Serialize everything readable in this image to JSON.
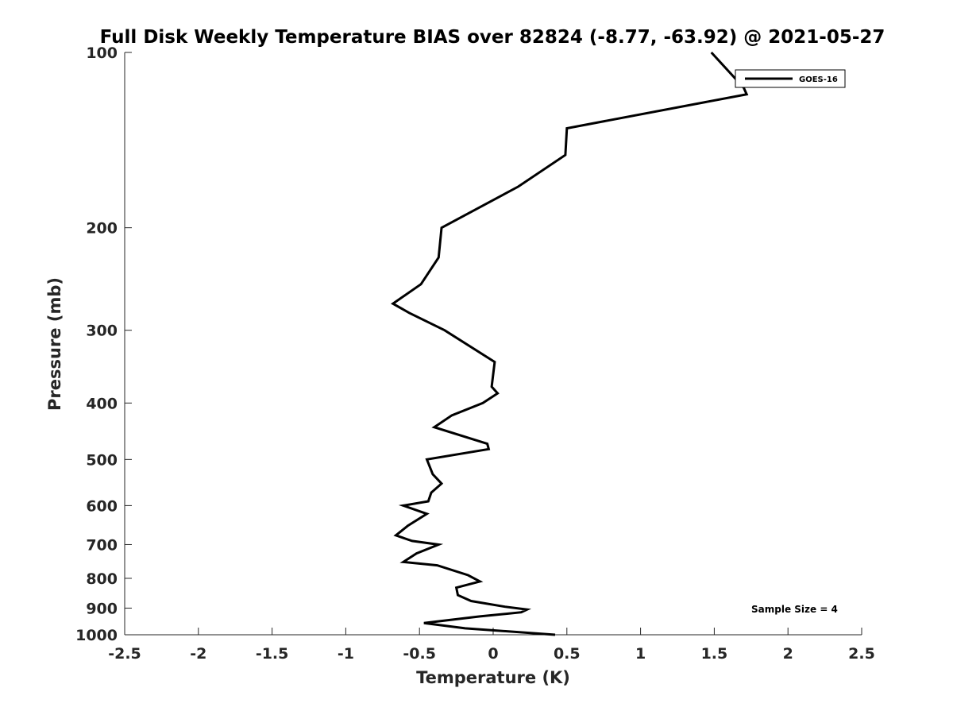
{
  "chart_data": {
    "type": "line",
    "title": "Full Disk Weekly Temperature BIAS over 82824 (-8.77, -63.92) @ 2021-05-27",
    "xlabel": "Temperature (K)",
    "ylabel": "Pressure (mb)",
    "xlim": [
      -2.5,
      2.5
    ],
    "ylim": [
      1000,
      100
    ],
    "y_scale": "log",
    "x_ticks": [
      -2.5,
      -2,
      -1.5,
      -1,
      -0.5,
      0,
      0.5,
      1,
      1.5,
      2,
      2.5
    ],
    "x_tick_labels": [
      "-2.5",
      "-2",
      "-1.5",
      "-1",
      "-0.5",
      "0",
      "0.5",
      "1",
      "1.5",
      "2",
      "2.5"
    ],
    "y_ticks": [
      100,
      200,
      300,
      400,
      500,
      600,
      700,
      800,
      900,
      1000
    ],
    "y_tick_labels": [
      "100",
      "200",
      "300",
      "400",
      "500",
      "600",
      "700",
      "800",
      "900",
      "1000"
    ],
    "grid": false,
    "legend_position": "top-right",
    "annotation": "Sample Size = 4",
    "series": [
      {
        "name": "GOES-16",
        "color": "#000000",
        "points": [
          {
            "x": 1.48,
            "p": 100
          },
          {
            "x": 1.7,
            "p": 115
          },
          {
            "x": 1.72,
            "p": 118
          },
          {
            "x": 0.5,
            "p": 135
          },
          {
            "x": 0.49,
            "p": 150
          },
          {
            "x": 0.17,
            "p": 170
          },
          {
            "x": -0.35,
            "p": 200
          },
          {
            "x": -0.37,
            "p": 225
          },
          {
            "x": -0.49,
            "p": 250
          },
          {
            "x": -0.68,
            "p": 270
          },
          {
            "x": -0.57,
            "p": 280
          },
          {
            "x": -0.33,
            "p": 300
          },
          {
            "x": 0.01,
            "p": 340
          },
          {
            "x": -0.01,
            "p": 375
          },
          {
            "x": 0.03,
            "p": 385
          },
          {
            "x": -0.07,
            "p": 400
          },
          {
            "x": -0.28,
            "p": 420
          },
          {
            "x": -0.4,
            "p": 440
          },
          {
            "x": -0.04,
            "p": 470
          },
          {
            "x": -0.03,
            "p": 480
          },
          {
            "x": -0.45,
            "p": 500
          },
          {
            "x": -0.41,
            "p": 530
          },
          {
            "x": -0.35,
            "p": 550
          },
          {
            "x": -0.42,
            "p": 570
          },
          {
            "x": -0.44,
            "p": 590
          },
          {
            "x": -0.61,
            "p": 600
          },
          {
            "x": -0.45,
            "p": 620
          },
          {
            "x": -0.58,
            "p": 650
          },
          {
            "x": -0.66,
            "p": 675
          },
          {
            "x": -0.55,
            "p": 690
          },
          {
            "x": -0.37,
            "p": 700
          },
          {
            "x": -0.52,
            "p": 725
          },
          {
            "x": -0.61,
            "p": 750
          },
          {
            "x": -0.38,
            "p": 760
          },
          {
            "x": -0.17,
            "p": 790
          },
          {
            "x": -0.09,
            "p": 810
          },
          {
            "x": -0.25,
            "p": 830
          },
          {
            "x": -0.24,
            "p": 855
          },
          {
            "x": -0.15,
            "p": 875
          },
          {
            "x": 0.08,
            "p": 895
          },
          {
            "x": 0.23,
            "p": 905
          },
          {
            "x": 0.19,
            "p": 915
          },
          {
            "x": -0.09,
            "p": 930
          },
          {
            "x": -0.47,
            "p": 955
          },
          {
            "x": -0.19,
            "p": 975
          },
          {
            "x": 0.42,
            "p": 1000
          }
        ]
      }
    ]
  }
}
